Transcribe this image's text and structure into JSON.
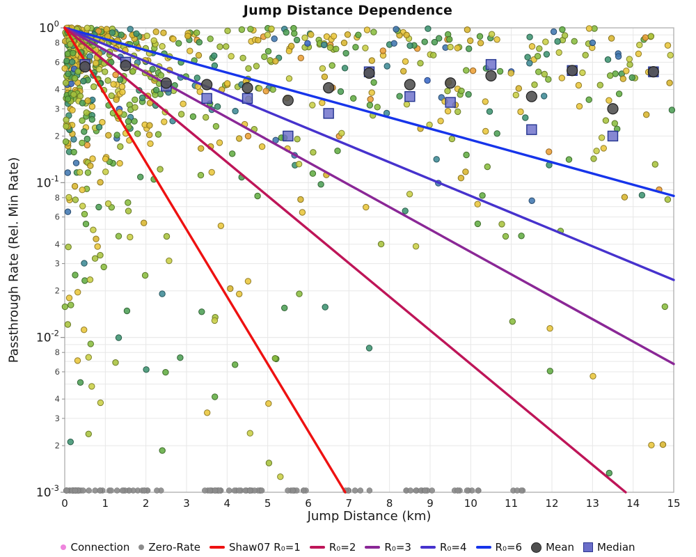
{
  "chart_data": {
    "type": "scatter",
    "title": "Jump Distance Dependence",
    "xlabel": "Jump Distance (km)",
    "ylabel": "Passthrough Rate (Rel. Min Rate)",
    "x_axis": {
      "min": 0,
      "max": 15,
      "ticks": [
        0,
        1,
        2,
        3,
        4,
        5,
        6,
        7,
        8,
        9,
        10,
        11,
        12,
        13,
        14,
        15
      ]
    },
    "y_axis": {
      "scale": "log",
      "major_exponents": [
        0,
        -1,
        -2,
        -3
      ],
      "minor_digit_labels": [
        8,
        6,
        4,
        3,
        2
      ],
      "grid_digits": [
        9,
        8,
        7,
        6,
        5,
        4,
        3,
        2
      ],
      "range": [
        0.001,
        1.0
      ]
    },
    "model_lines": {
      "model": "rate = exp(-distance / R0)",
      "series": [
        {
          "label": "Shaw07 R₀=1",
          "r0": 1,
          "color": "#ee1111"
        },
        {
          "label": "R₀=2",
          "r0": 2,
          "color": "#be1558"
        },
        {
          "label": "R₀=3",
          "r0": 3,
          "color": "#8a2796"
        },
        {
          "label": "R₀=4",
          "r0": 4,
          "color": "#4632cd"
        },
        {
          "label": "R₀=6",
          "r0": 6,
          "color": "#1634ea"
        }
      ]
    },
    "binned_stats": {
      "bin_centers": [
        0.5,
        1.5,
        2.5,
        3.5,
        4.5,
        5.5,
        6.5,
        7.5,
        8.5,
        9.5,
        10.5,
        11.5,
        12.5,
        13.5,
        14.5
      ],
      "mean": [
        0.56,
        0.57,
        0.44,
        0.43,
        0.41,
        0.34,
        0.41,
        0.51,
        0.43,
        0.44,
        0.49,
        0.36,
        0.53,
        0.3,
        0.52
      ],
      "median": [
        0.58,
        0.6,
        0.42,
        0.35,
        0.35,
        0.2,
        0.28,
        0.52,
        0.36,
        0.33,
        0.58,
        0.22,
        0.53,
        0.2,
        0.52
      ]
    },
    "mean_style": {
      "color": "#4f4f4f",
      "edge": "#1f1f1f",
      "radius": 7.5
    },
    "median_style": {
      "color": "#6b6ec9",
      "edge": "#22338f",
      "size": 14
    },
    "scatter": {
      "name": "Connection",
      "count": 800,
      "seed": 1337,
      "point_radius": 4.2,
      "palette": [
        "#e9c63b",
        "#d9b62f",
        "#c9cf45",
        "#a8c33e",
        "#8abd3f",
        "#63ad43",
        "#4d9f55",
        "#3f9472",
        "#3f8b96",
        "#4178b0",
        "#ec9f35",
        "#3a69c7"
      ],
      "palette_weights": [
        0.17,
        0.13,
        0.1,
        0.11,
        0.12,
        0.11,
        0.08,
        0.06,
        0.05,
        0.03,
        0.03,
        0.01
      ]
    },
    "zero_rate": {
      "name": "Zero-Rate",
      "count": 125,
      "seed": 77,
      "color": "#8c8c8c",
      "x_max": 11.6,
      "clusters": 38,
      "value": 0.001
    },
    "legend": {
      "items": [
        {
          "type": "dot",
          "color": "#ee85dd",
          "label": "Connection"
        },
        {
          "type": "dot",
          "color": "#8c8c8c",
          "label": "Zero-Rate"
        },
        {
          "type": "line",
          "color": "#ee1111",
          "label": "Shaw07 R₀=1"
        },
        {
          "type": "line",
          "color": "#be1558",
          "label": "R₀=2"
        },
        {
          "type": "line",
          "color": "#8a2796",
          "label": "R₀=3"
        },
        {
          "type": "line",
          "color": "#4632cd",
          "label": "R₀=4"
        },
        {
          "type": "line",
          "color": "#1634ea",
          "label": "R₀=6"
        },
        {
          "type": "circle",
          "color": "#4f4f4f",
          "label": "Mean"
        },
        {
          "type": "square",
          "color": "#6b6ec9",
          "label": "Median"
        }
      ]
    },
    "style": {
      "grid_color": "#e7e7e7",
      "spine_color": "#b3b3b3",
      "tick_color": "#8a8a8a",
      "tick_label_color": "#1a1a1a",
      "minor_label_color": "#444444",
      "background": "#ffffff"
    }
  }
}
